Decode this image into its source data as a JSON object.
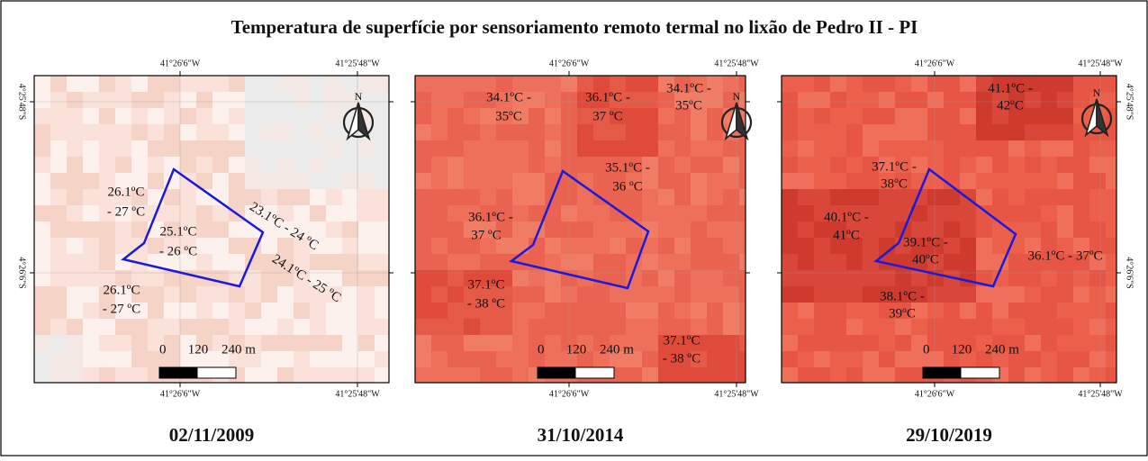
{
  "title": "Temperatura de superfície por sensoriamento remoto termal no lixão de Pedro II - PI",
  "coordinates": {
    "lon_west": "41°26'6\"W",
    "lon_east": "41°25'48\"W",
    "lat_north": "4°25'48\"S",
    "lat_south": "4°26'6\"S"
  },
  "north": "N",
  "scale_bar": [
    "0",
    "120",
    "240 m"
  ],
  "panels": [
    {
      "date": "02/11/2009",
      "labels": [
        [
          "26.1ºC",
          "- 27 ºC"
        ],
        [
          "25.1ºC",
          "- 26 ºC"
        ],
        [
          "23.1ºC - 24 ºC"
        ],
        [
          "24.1ºC - 25 ºC"
        ],
        [
          "26.1ºC",
          "- 27 ºC"
        ]
      ]
    },
    {
      "date": "31/10/2014",
      "labels": [
        [
          "34.1ºC -",
          "35ºC"
        ],
        [
          "36.1ºC -",
          "37 ºC"
        ],
        [
          "34.1ºC -",
          "35ºC"
        ],
        [
          "35.1ºC -",
          "36 ºC"
        ],
        [
          "36.1ºC -",
          "37 ºC"
        ],
        [
          "37.1ºC",
          "- 38 ºC"
        ],
        [
          "37.1ºC",
          "- 38 ºC"
        ]
      ]
    },
    {
      "date": "29/10/2019",
      "labels": [
        [
          "41.1ºC -",
          "42ºC"
        ],
        [
          "37.1ºC -",
          "38ºC"
        ],
        [
          "40.1ºC -",
          "41ºC"
        ],
        [
          "39.1ºC -",
          "40ºC"
        ],
        [
          "36.1ºC - 37ºC"
        ],
        [
          "38.1ºC -",
          "39ºC"
        ]
      ]
    }
  ]
}
